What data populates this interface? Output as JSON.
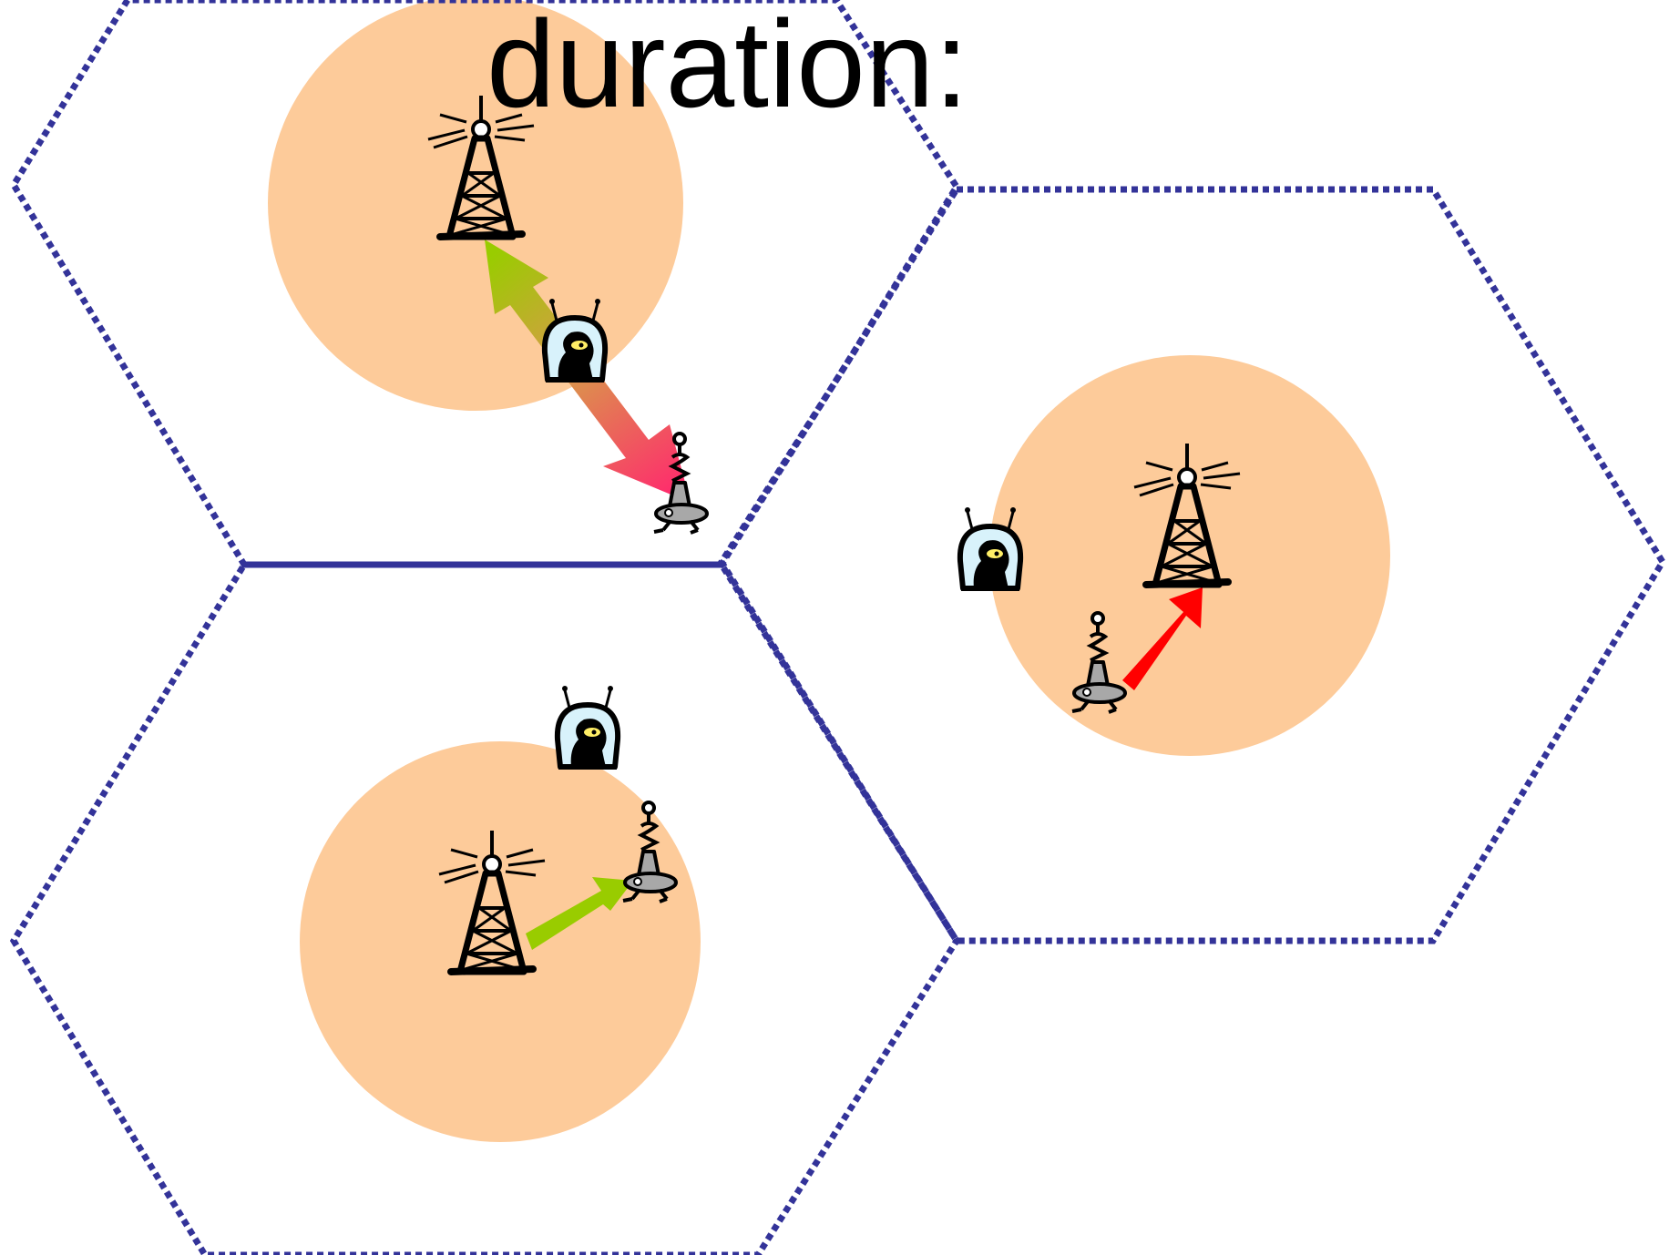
{
  "title": "duration:",
  "colors": {
    "cell_border": "#333399",
    "coverage": "#fdcb9a",
    "link_good": "#99cc00",
    "link_bad": "#ff0000",
    "link_handover": "#ff2a6d",
    "user_glass": "#d8f2fb",
    "user_face": "#ffee66",
    "mobile_body": "#a8a8a8"
  },
  "icons": {
    "base_station": "radio-tower-icon",
    "mobile_station": "walking-mobile-icon",
    "user": "alien-user-icon"
  }
}
